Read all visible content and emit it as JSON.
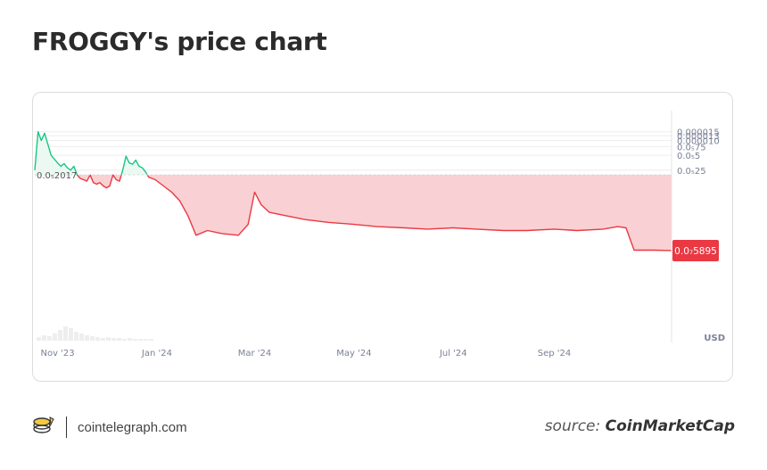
{
  "page": {
    "title": "FROGGY's price chart"
  },
  "footer": {
    "logo_icon": "cointelegraph-coin-icon",
    "site": "cointelegraph.com",
    "source_prefix": "source:",
    "source_name": "CoinMarketCap"
  },
  "colors": {
    "up": "#16c784",
    "down": "#ea3943",
    "up_fill": "#e8f8f0",
    "down_fill": "#f8c8cb",
    "grid": "#eeeeee",
    "axis_text": "#7a8196",
    "volume": "#eeeeee"
  },
  "chart_data": {
    "type": "line",
    "currency_label": "USD",
    "baseline_label": "0.0₅2017",
    "baseline_value": 2.017e-06,
    "current_label": "0.0₇5895",
    "current_value": 5.895e-08,
    "ylim": [
      1e-09,
      1.75e-05
    ],
    "yticks": [
      {
        "value": 2.5e-06,
        "label": "0.0₅25"
      },
      {
        "value": 5e-06,
        "label": "0.0₅5"
      },
      {
        "value": 7.5e-06,
        "label": "0.0₅75"
      },
      {
        "value": 1e-05,
        "label": "0.000010"
      },
      {
        "value": 1.25e-05,
        "label": "0.000013"
      },
      {
        "value": 1.5e-05,
        "label": "0.000015"
      }
    ],
    "xlim": [
      "2023-10-18",
      "2024-11-12"
    ],
    "xticks": [
      {
        "date": "2023-11-01",
        "label": "Nov '23"
      },
      {
        "date": "2024-01-01",
        "label": "Jan '24"
      },
      {
        "date": "2024-03-01",
        "label": "Mar '24"
      },
      {
        "date": "2024-05-01",
        "label": "May '24"
      },
      {
        "date": "2024-07-01",
        "label": "Jul '24"
      },
      {
        "date": "2024-09-01",
        "label": "Sep '24"
      }
    ],
    "series": [
      {
        "x": [
          "2023-10-18",
          "2023-10-20",
          "2023-10-22",
          "2023-10-24",
          "2023-10-26",
          "2023-10-28",
          "2023-10-30",
          "2023-11-01",
          "2023-11-03",
          "2023-11-05",
          "2023-11-07",
          "2023-11-09",
          "2023-11-11",
          "2023-11-13",
          "2023-11-15",
          "2023-11-17",
          "2023-11-19",
          "2023-11-21",
          "2023-11-23",
          "2023-11-25",
          "2023-11-27",
          "2023-11-29",
          "2023-12-01",
          "2023-12-03",
          "2023-12-05",
          "2023-12-07",
          "2023-12-09",
          "2023-12-11",
          "2023-12-13",
          "2023-12-15",
          "2023-12-17",
          "2023-12-19",
          "2023-12-21",
          "2023-12-23",
          "2023-12-25",
          "2023-12-27",
          "2023-12-29",
          "2023-12-31",
          "2024-01-05",
          "2024-01-10",
          "2024-01-15",
          "2024-01-20",
          "2024-01-25",
          "2024-02-01",
          "2024-02-10",
          "2024-02-20",
          "2024-02-26",
          "2024-03-01",
          "2024-03-05",
          "2024-03-10",
          "2024-03-20",
          "2024-04-01",
          "2024-04-15",
          "2024-05-01",
          "2024-05-15",
          "2024-06-01",
          "2024-06-15",
          "2024-07-01",
          "2024-07-15",
          "2024-08-01",
          "2024-08-15",
          "2024-09-01",
          "2024-09-15",
          "2024-10-01",
          "2024-10-10",
          "2024-10-15",
          "2024-10-20",
          "2024-11-01",
          "2024-11-12"
        ],
        "y": [
          2.5e-06,
          1.5e-05,
          1e-05,
          1.4e-05,
          8.5e-06,
          5e-06,
          4.2e-06,
          3.5e-06,
          3e-06,
          3.4e-06,
          2.8e-06,
          2.5e-06,
          3e-06,
          2e-06,
          1.7e-06,
          1.6e-06,
          1.5e-06,
          2e-06,
          1.4e-06,
          1.3e-06,
          1.4e-06,
          1.2e-06,
          1.1e-06,
          1.2e-06,
          2e-06,
          1.6e-06,
          1.5e-06,
          2.5e-06,
          4.8e-06,
          3.5e-06,
          3.3e-06,
          4e-06,
          3e-06,
          2.8e-06,
          2.3e-06,
          1.8e-06,
          1.7e-06,
          1.6e-06,
          1.2e-06,
          9e-07,
          6e-07,
          3e-07,
          1.2e-07,
          1.5e-07,
          1.3e-07,
          1.2e-07,
          2e-07,
          9e-07,
          5e-07,
          3.5e-07,
          3e-07,
          2.5e-07,
          2.2e-07,
          2e-07,
          1.8e-07,
          1.7e-07,
          1.6e-07,
          1.7e-07,
          1.6e-07,
          1.5e-07,
          1.5e-07,
          1.6e-07,
          1.5e-07,
          1.6e-07,
          1.8e-07,
          1.7e-07,
          6e-08,
          6e-08,
          5.895e-08
        ]
      }
    ],
    "volume_visible": true
  }
}
